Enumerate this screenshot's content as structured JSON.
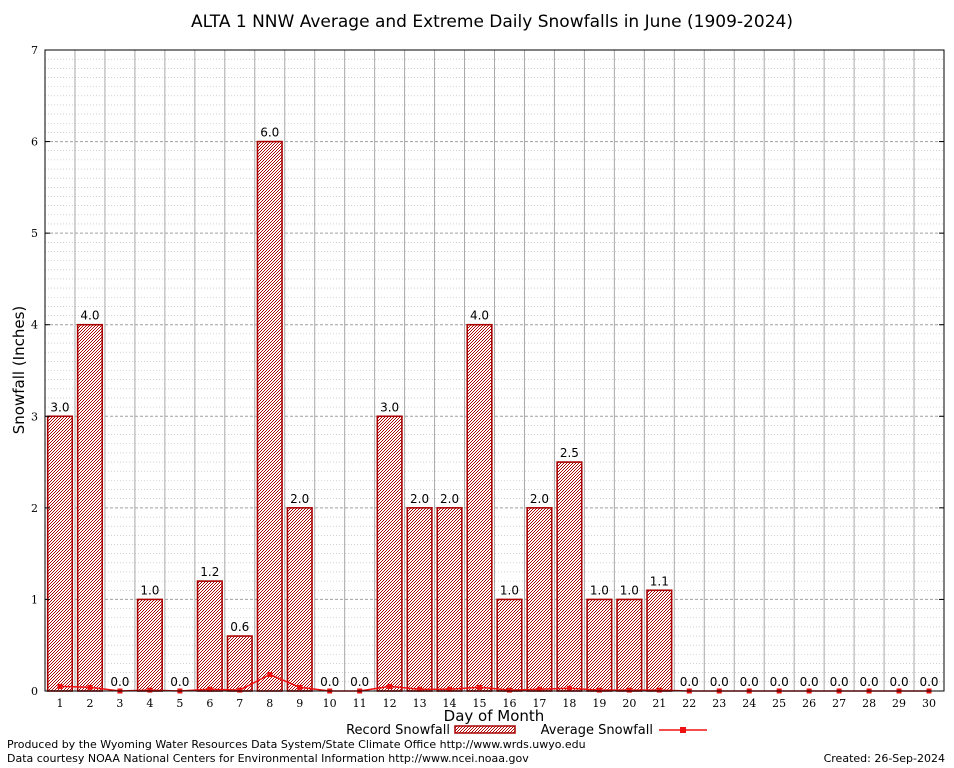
{
  "chart_data": {
    "type": "bar",
    "title": "ALTA 1 NNW Average and Extreme Daily Snowfalls in June (1909-2024)",
    "xlabel": "Day of Month",
    "ylabel": "Snowfall (Inches)",
    "ylim": [
      0,
      7
    ],
    "yticks": [
      "0",
      "1",
      "2",
      "3",
      "4",
      "5",
      "6",
      "7"
    ],
    "grid": true,
    "categories": [
      "1",
      "2",
      "3",
      "4",
      "5",
      "6",
      "7",
      "8",
      "9",
      "10",
      "11",
      "12",
      "13",
      "14",
      "15",
      "16",
      "17",
      "18",
      "19",
      "20",
      "21",
      "22",
      "23",
      "24",
      "25",
      "26",
      "27",
      "28",
      "29",
      "30"
    ],
    "series": [
      {
        "name": "Record Snowfall",
        "kind": "bar",
        "color": "#aa0000",
        "values": [
          3.0,
          4.0,
          0.0,
          1.0,
          0.0,
          1.2,
          0.6,
          6.0,
          2.0,
          0.0,
          0.0,
          3.0,
          2.0,
          2.0,
          4.0,
          1.0,
          2.0,
          2.5,
          1.0,
          1.0,
          1.1,
          0.0,
          0.0,
          0.0,
          0.0,
          0.0,
          0.0,
          0.0,
          0.0,
          0.0
        ],
        "labels": [
          "3.0",
          "4.0",
          "0.0",
          "1.0",
          "0.0",
          "1.2",
          "0.6",
          "6.0",
          "2.0",
          "0.0",
          "0.0",
          "3.0",
          "2.0",
          "2.0",
          "4.0",
          "1.0",
          "2.0",
          "2.5",
          "1.0",
          "1.0",
          "1.1",
          "0.0",
          "0.0",
          "0.0",
          "0.0",
          "0.0",
          "0.0",
          "0.0",
          "0.0",
          "0.0"
        ]
      },
      {
        "name": "Average Snowfall",
        "kind": "line",
        "color": "#ee1111",
        "values": [
          0.05,
          0.04,
          0.0,
          0.01,
          0.0,
          0.02,
          0.01,
          0.18,
          0.04,
          0.0,
          0.0,
          0.05,
          0.02,
          0.02,
          0.04,
          0.01,
          0.02,
          0.03,
          0.01,
          0.01,
          0.01,
          0.0,
          0.0,
          0.0,
          0.0,
          0.0,
          0.0,
          0.0,
          0.0,
          0.0
        ]
      }
    ],
    "legend_placement": "bottom-center"
  },
  "footer": {
    "line1": "Produced by the Wyoming Water Resources Data System/State Climate Office http://www.wrds.uwyo.edu",
    "line2": "Data courtesy NOAA National Centers for Environmental Information http://www.ncei.noaa.gov",
    "created": "Created:  26-Sep-2024"
  }
}
